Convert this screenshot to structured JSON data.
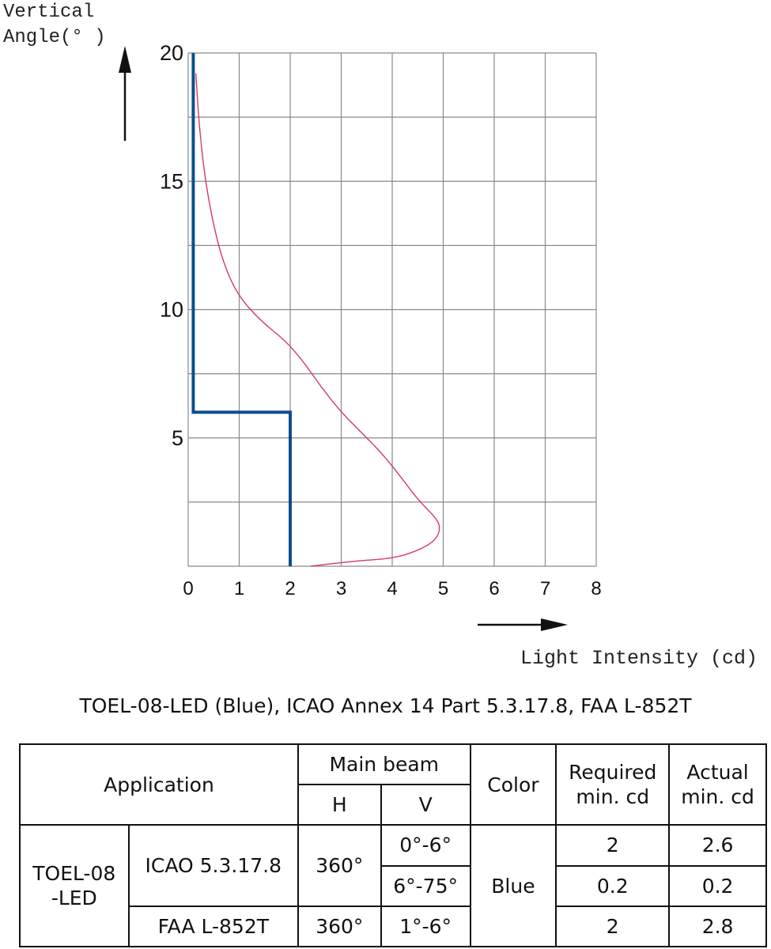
{
  "chart_data": {
    "type": "line",
    "ylabel_lines": [
      "Vertical",
      "Angle(° )"
    ],
    "xlabel": "Light Intensity (cd)",
    "xlim": [
      0,
      8
    ],
    "ylim": [
      0,
      20
    ],
    "x_ticks": [
      "0",
      "1",
      "2",
      "3",
      "4",
      "5",
      "6",
      "7",
      "8"
    ],
    "y_ticks": [
      "5",
      "10",
      "15",
      "20"
    ],
    "grid": true,
    "series": [
      {
        "color": "#0d4f8b",
        "style": "step",
        "x": [
          2,
          2,
          0.1,
          0.1
        ],
        "y": [
          0,
          6,
          6,
          20
        ]
      },
      {
        "color": "#d63a5f",
        "style": "line",
        "x": [
          2.4,
          3.2,
          4.0,
          4.5,
          4.85,
          4.95,
          4.85,
          4.5,
          4.2,
          3.8,
          3.4,
          3.0,
          2.6,
          2.25,
          1.9,
          1.4,
          1.0,
          0.75,
          0.55,
          0.35,
          0.22,
          0.15
        ],
        "y": [
          0,
          0.2,
          0.3,
          0.6,
          1.0,
          1.5,
          1.9,
          2.6,
          3.4,
          4.4,
          5.2,
          6.0,
          7.0,
          8.0,
          8.8,
          9.6,
          10.5,
          11.5,
          12.8,
          14.8,
          17.0,
          19.2
        ]
      }
    ]
  },
  "caption": "TOEL-08-LED (Blue), ICAO Annex 14 Part 5.3.17.8, FAA L-852T",
  "table": {
    "headers": {
      "application": "Application",
      "main_beam": "Main beam",
      "h": "H",
      "v": "V",
      "color": "Color",
      "required_line1": "Required",
      "required_line2": "min. cd",
      "actual_line1": "Actual",
      "actual_line2": "min. cd"
    },
    "product_line1": "TOEL-08",
    "product_line2": "-LED",
    "color_value": "Blue",
    "rows": [
      {
        "standard": "ICAO 5.3.17.8",
        "h": "360°",
        "v": "0°-6°",
        "required": "2",
        "actual": "2.6"
      },
      {
        "v": "6°-75°",
        "required": "0.2",
        "actual": "0.2"
      },
      {
        "standard": "FAA L-852T",
        "h": "360°",
        "v": "1°-6°",
        "required": "2",
        "actual": "2.8"
      }
    ]
  }
}
